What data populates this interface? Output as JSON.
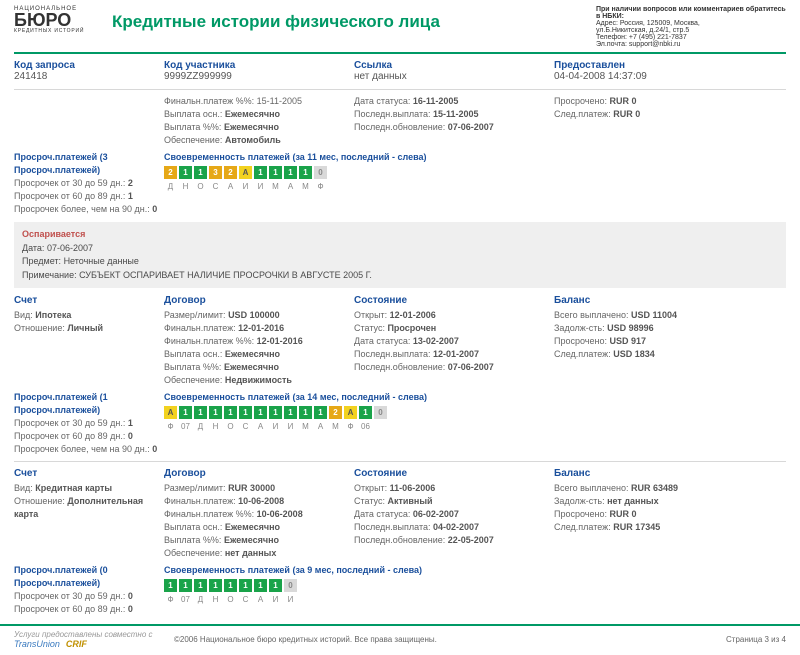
{
  "logo": {
    "top": "НАЦИОНАЛЬНОЕ",
    "main": "БЮРО",
    "sub": "КРЕДИТНЫХ ИСТОРИЙ"
  },
  "title": "Кредитные истории физического лица",
  "contact": {
    "line1": "При наличии вопросов или комментариев обратитесь в НБКИ:",
    "line2": "Адрес: Россия, 125009, Москва,",
    "line3": "ул.Б.Никитская, д.24/1, стр.5",
    "line4": "Телефон: +7 (495) 221-7837",
    "line5": "Эл.почта: support@nbki.ru"
  },
  "meta": {
    "req_code_lbl": "Код запроса",
    "req_code": "241418",
    "part_code_lbl": "Код участника",
    "part_code": "9999ZZ999999",
    "link_lbl": "Ссылка",
    "link": "нет данных",
    "provided_lbl": "Предоставлен",
    "provided": "04-04-2008 14:37:09"
  },
  "top_block": {
    "final_pay": "Финальн.платеж %%: 15-11-2005",
    "pay_osn": "Выплата осн.: ",
    "pay_osn_v": "Ежемесячно",
    "pay_pct": "Выплата %%: ",
    "pay_pct_v": "Ежемесячно",
    "secur": "Обеспечение: ",
    "secur_v": "Автомобиль",
    "status_date": "Дата статуса: ",
    "status_date_v": "16-11-2005",
    "last_pay": "Последн.выплата: ",
    "last_pay_v": "15-11-2005",
    "last_upd": "Последн.обновление: ",
    "last_upd_v": "07-06-2007",
    "overdue": "Просрочено: ",
    "overdue_v": "RUR 0",
    "next": "След.платеж: ",
    "next_v": "RUR 0"
  },
  "late1": {
    "title1": "Просроч.платежей (3 Просроч.платежей)",
    "r1": "Просрочек от 30 до 59 дн.: ",
    "r1v": "2",
    "r2": "Просрочек от 60 до 89 дн.: ",
    "r2v": "1",
    "r3": "Просрочек более, чем на 90 дн.: ",
    "r3v": "0",
    "timely": "Своевременность платежей (за 11 мес, последний - слева)",
    "boxes": [
      {
        "c": "orange",
        "t": "2"
      },
      {
        "c": "green",
        "t": "1"
      },
      {
        "c": "green",
        "t": "1"
      },
      {
        "c": "orange",
        "t": "3"
      },
      {
        "c": "orange",
        "t": "2"
      },
      {
        "c": "yellow",
        "t": "А"
      },
      {
        "c": "green",
        "t": "1"
      },
      {
        "c": "green",
        "t": "1"
      },
      {
        "c": "green",
        "t": "1"
      },
      {
        "c": "green",
        "t": "1"
      },
      {
        "c": "gray",
        "t": "0"
      }
    ],
    "labels": [
      "Д",
      "Н",
      "О",
      "С",
      "А",
      "И",
      "И",
      "М",
      "А",
      "М",
      "Ф"
    ]
  },
  "dispute": {
    "title": "Оспаривается",
    "date": "Дата: ",
    "date_v": "07-06-2007",
    "subj": "Предмет: ",
    "subj_v": "Неточные данные",
    "note": "Примечание: ",
    "note_v": "СУБЪЕКТ ОСПАРИВАЕТ НАЛИЧИЕ ПРОСРОЧКИ В АВГУСТЕ 2005 Г."
  },
  "acct2": {
    "h1": "Счет",
    "h2": "Договор",
    "h3": "Состояние",
    "h4": "Баланс",
    "vid": "Вид: ",
    "vid_v": "Ипотека",
    "rel": "Отношение: ",
    "rel_v": "Личный",
    "lim": "Размер/лимит: ",
    "lim_v": "USD 100000",
    "fin": "Финальн.платеж: ",
    "fin_v": "12-01-2016",
    "finp": "Финальн.платеж %%: ",
    "finp_v": "12-01-2016",
    "po": "Выплата осн.: ",
    "po_v": "Ежемесячно",
    "pp": "Выплата %%: ",
    "pp_v": "Ежемесячно",
    "sec": "Обеспечение: ",
    "sec_v": "Недвижимость",
    "open": "Открыт: ",
    "open_v": "12-01-2006",
    "stat": "Статус: ",
    "stat_v": "Просрочен",
    "ds": "Дата статуса: ",
    "ds_v": "13-02-2007",
    "lp": "Последн.выплата: ",
    "lp_v": "12-01-2007",
    "lu": "Последн.обновление: ",
    "lu_v": "07-06-2007",
    "paid": "Всего выплачено: ",
    "paid_v": "USD 11004",
    "debt": "Задолж-сть: ",
    "debt_v": "USD 98996",
    "ov": "Просрочено: ",
    "ov_v": "USD 917",
    "np": "След.платеж: ",
    "np_v": "USD 1834"
  },
  "late2": {
    "title1": "Просроч.платежей (1 Просроч.платежей)",
    "r1": "Просрочек от 30 до 59 дн.: ",
    "r1v": "1",
    "r2": "Просрочек от 60 до 89 дн.: ",
    "r2v": "0",
    "r3": "Просрочек более, чем на 90 дн.: ",
    "r3v": "0",
    "timely": "Своевременность платежей (за 14 мес, последний - слева)",
    "boxes": [
      {
        "c": "yellow",
        "t": "А"
      },
      {
        "c": "green",
        "t": "1"
      },
      {
        "c": "green",
        "t": "1"
      },
      {
        "c": "green",
        "t": "1"
      },
      {
        "c": "green",
        "t": "1"
      },
      {
        "c": "green",
        "t": "1"
      },
      {
        "c": "green",
        "t": "1"
      },
      {
        "c": "green",
        "t": "1"
      },
      {
        "c": "green",
        "t": "1"
      },
      {
        "c": "green",
        "t": "1"
      },
      {
        "c": "green",
        "t": "1"
      },
      {
        "c": "orange",
        "t": "2"
      },
      {
        "c": "yellow",
        "t": "А"
      },
      {
        "c": "green",
        "t": "1"
      },
      {
        "c": "gray",
        "t": "0"
      }
    ],
    "labels": [
      "Ф",
      "07",
      "Д",
      "Н",
      "О",
      "С",
      "А",
      "И",
      "И",
      "М",
      "А",
      "М",
      "Ф",
      "06",
      ""
    ]
  },
  "acct3": {
    "vid": "Вид: ",
    "vid_v": "Кредитная карты",
    "rel": "Отношение: ",
    "rel_v": "Дополнительная карта",
    "lim": "Размер/лимит: ",
    "lim_v": "RUR 30000",
    "fin": "Финальн.платеж: ",
    "fin_v": "10-06-2008",
    "finp": "Финальн.платеж %%: ",
    "finp_v": "10-06-2008",
    "po": "Выплата осн.: ",
    "po_v": "Ежемесячно",
    "pp": "Выплата %%: ",
    "pp_v": "Ежемесячно",
    "sec": "Обеспечение: ",
    "sec_v": "нет данных",
    "open": "Открыт: ",
    "open_v": "11-06-2006",
    "stat": "Статус: ",
    "stat_v": "Активный",
    "ds": "Дата статуса: ",
    "ds_v": "06-02-2007",
    "lp": "Последн.выплата: ",
    "lp_v": "04-02-2007",
    "lu": "Последн.обновление: ",
    "lu_v": "22-05-2007",
    "paid": "Всего выплачено: ",
    "paid_v": "RUR 63489",
    "debt": "Задолж-сть: ",
    "debt_v": "нет данных",
    "ov": "Просрочено: ",
    "ov_v": "RUR 0",
    "np": "След.платеж: ",
    "np_v": "RUR 17345"
  },
  "late3": {
    "title1": "Просроч.платежей (0 Просроч.платежей)",
    "r1": "Просрочек от 30 до 59 дн.: ",
    "r1v": "0",
    "r2": "Просрочек от 60 до 89 дн.: ",
    "r2v": "0",
    "timely": "Своевременность платежей (за 9 мес, последний - слева)",
    "boxes": [
      {
        "c": "green",
        "t": "1"
      },
      {
        "c": "green",
        "t": "1"
      },
      {
        "c": "green",
        "t": "1"
      },
      {
        "c": "green",
        "t": "1"
      },
      {
        "c": "green",
        "t": "1"
      },
      {
        "c": "green",
        "t": "1"
      },
      {
        "c": "green",
        "t": "1"
      },
      {
        "c": "green",
        "t": "1"
      },
      {
        "c": "gray",
        "t": "0"
      }
    ],
    "labels": [
      "Ф",
      "07",
      "Д",
      "Н",
      "О",
      "С",
      "А",
      "И",
      "И"
    ]
  },
  "footer": {
    "left": "Услуги предоставлены совместно с",
    "logo1": "TransUnion",
    "logo2": "CRIF",
    "center": "©2006 Национальное бюро кредитных историй. Все права защищены.",
    "right": "Страница 3 из 4"
  }
}
